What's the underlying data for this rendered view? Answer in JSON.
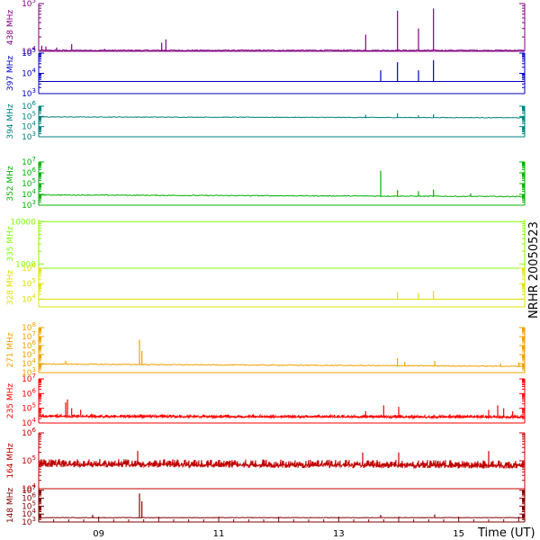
{
  "station_label": "NRHR 20050523",
  "x_axis": {
    "title": "Time (UT)",
    "ticks": [
      "09",
      "11",
      "13",
      "15"
    ]
  },
  "chart_data": {
    "type": "line",
    "title": "",
    "xlabel": "Time (UT)",
    "x_range_hours": [
      8.0,
      16.1
    ],
    "x_tick_hours": [
      9,
      11,
      13,
      15
    ],
    "x_tick_labels": [
      "09",
      "11",
      "13",
      "15"
    ],
    "side_label": "NRHR 20050523",
    "panels": [
      {
        "name": "438 MHz",
        "color": "#800080",
        "scale": "log",
        "tick_labels": [
          {
            "exp": 4,
            "base": "10",
            "sup": "4"
          },
          {
            "exp": 5,
            "base": "10",
            "sup": "5"
          }
        ],
        "ylim_exp": [
          4,
          5
        ],
        "baseline_exp": 4.02,
        "noise": 0.01,
        "spikes": [
          {
            "t": 8.05,
            "exp": 4.12
          },
          {
            "t": 8.12,
            "exp": 4.1
          },
          {
            "t": 8.3,
            "exp": 4.08
          },
          {
            "t": 8.55,
            "exp": 4.15
          },
          {
            "t": 9.1,
            "exp": 4.05
          },
          {
            "t": 10.05,
            "exp": 4.18
          },
          {
            "t": 10.12,
            "exp": 4.25
          },
          {
            "t": 13.45,
            "exp": 4.35
          },
          {
            "t": 13.98,
            "exp": 4.85
          },
          {
            "t": 14.33,
            "exp": 4.48
          },
          {
            "t": 14.58,
            "exp": 4.9
          }
        ]
      },
      {
        "name": "397 MHz",
        "color": "#0000c0",
        "scale": "log",
        "tick_labels": [
          {
            "exp": 3,
            "base": "10",
            "sup": "3"
          },
          {
            "exp": 4,
            "base": "10",
            "sup": "4"
          },
          {
            "exp": 5,
            "base": "10",
            "sup": "5"
          }
        ],
        "ylim_exp": [
          3,
          5
        ],
        "baseline_exp": 3.6,
        "noise": 0.0,
        "spikes": [
          {
            "t": 13.7,
            "exp": 4.15
          },
          {
            "t": 13.98,
            "exp": 4.55
          },
          {
            "t": 14.33,
            "exp": 4.15
          },
          {
            "t": 14.58,
            "exp": 4.65
          }
        ]
      },
      {
        "name": "394 MHz",
        "color": "#008080",
        "scale": "log",
        "tick_labels": [
          {
            "exp": 3,
            "base": "10",
            "sup": "3"
          },
          {
            "exp": 4,
            "base": "10",
            "sup": "4"
          },
          {
            "exp": 5,
            "base": "10",
            "sup": "5"
          },
          {
            "exp": 6,
            "base": "10",
            "sup": "6"
          }
        ],
        "ylim_exp": [
          3,
          6
        ],
        "baseline_exp": 4.95,
        "baseline_end_exp": 4.87,
        "noise": 0.03,
        "spikes": [
          {
            "t": 13.45,
            "exp": 5.15
          },
          {
            "t": 13.98,
            "exp": 5.3
          },
          {
            "t": 14.33,
            "exp": 5.1
          },
          {
            "t": 14.58,
            "exp": 5.2
          }
        ]
      },
      {
        "name": "352 MHz",
        "color": "#00b000",
        "scale": "log",
        "tick_labels": [
          {
            "exp": 3,
            "base": "10",
            "sup": "3"
          },
          {
            "exp": 4,
            "base": "10",
            "sup": "4"
          },
          {
            "exp": 5,
            "base": "10",
            "sup": "5"
          },
          {
            "exp": 6,
            "base": "10",
            "sup": "6"
          },
          {
            "exp": 7,
            "base": "10",
            "sup": "7"
          }
        ],
        "ylim_exp": [
          3,
          7
        ],
        "baseline_exp": 3.95,
        "baseline_end_exp": 3.8,
        "noise": 0.04,
        "spikes": [
          {
            "t": 13.7,
            "exp": 6.2
          },
          {
            "t": 13.98,
            "exp": 4.4
          },
          {
            "t": 14.33,
            "exp": 4.3
          },
          {
            "t": 14.58,
            "exp": 4.45
          },
          {
            "t": 15.2,
            "exp": 4.1
          }
        ]
      },
      {
        "name": "335 MHz",
        "color": "#80ff00",
        "scale": "log",
        "tick_labels": [
          {
            "exp": 3,
            "base": "1000",
            "sup": ""
          },
          {
            "exp": 4,
            "base": "10000",
            "sup": ""
          }
        ],
        "ylim_exp": [
          2.9,
          4.05
        ],
        "baseline_exp": 4.0,
        "noise": 0.0,
        "spikes": []
      },
      {
        "name": "328 MHz",
        "color": "#e0e000",
        "scale": "log",
        "tick_labels": [
          {
            "exp": 4,
            "base": "10",
            "sup": "4"
          },
          {
            "exp": 5,
            "base": "10",
            "sup": "5"
          },
          {
            "exp": 6,
            "base": "10",
            "sup": "6"
          }
        ],
        "ylim_exp": [
          3.5,
          6
        ],
        "baseline_exp": 4.0,
        "noise": 0.0,
        "spikes": [
          {
            "t": 13.98,
            "exp": 4.45
          },
          {
            "t": 14.33,
            "exp": 4.4
          },
          {
            "t": 14.58,
            "exp": 4.55
          }
        ]
      },
      {
        "name": "271 MHz",
        "color": "#f0a000",
        "scale": "log",
        "tick_labels": [
          {
            "exp": 3,
            "base": "10",
            "sup": "3"
          },
          {
            "exp": 4,
            "base": "10",
            "sup": "4"
          },
          {
            "exp": 5,
            "base": "10",
            "sup": "5"
          },
          {
            "exp": 6,
            "base": "10",
            "sup": "6"
          },
          {
            "exp": 7,
            "base": "10",
            "sup": "7"
          },
          {
            "exp": 8,
            "base": "10",
            "sup": "8"
          }
        ],
        "ylim_exp": [
          3,
          8
        ],
        "baseline_exp": 3.95,
        "baseline_end_exp": 3.7,
        "noise": 0.05,
        "spikes": [
          {
            "t": 8.45,
            "exp": 4.3
          },
          {
            "t": 9.68,
            "exp": 6.65
          },
          {
            "t": 9.72,
            "exp": 5.4
          },
          {
            "t": 13.98,
            "exp": 4.6
          },
          {
            "t": 14.1,
            "exp": 4.2
          },
          {
            "t": 14.6,
            "exp": 4.3
          },
          {
            "t": 15.7,
            "exp": 4.0
          },
          {
            "t": 16.0,
            "exp": 4.1
          }
        ]
      },
      {
        "name": "235 MHz",
        "color": "#ff0000",
        "scale": "log",
        "tick_labels": [
          {
            "exp": 4,
            "base": "10",
            "sup": "4"
          },
          {
            "exp": 5,
            "base": "10",
            "sup": "5"
          },
          {
            "exp": 6,
            "base": "10",
            "sup": "6"
          },
          {
            "exp": 7,
            "base": "10",
            "sup": "7"
          }
        ],
        "ylim_exp": [
          4,
          7
        ],
        "baseline_exp": 4.5,
        "baseline_end_exp": 4.45,
        "noise": 0.08,
        "spikes": [
          {
            "t": 8.45,
            "exp": 5.4
          },
          {
            "t": 8.48,
            "exp": 5.6
          },
          {
            "t": 8.55,
            "exp": 5.0
          },
          {
            "t": 8.7,
            "exp": 4.9
          },
          {
            "t": 13.45,
            "exp": 4.8
          },
          {
            "t": 13.75,
            "exp": 5.2
          },
          {
            "t": 14.0,
            "exp": 5.1
          },
          {
            "t": 15.5,
            "exp": 4.9
          },
          {
            "t": 15.65,
            "exp": 5.2
          },
          {
            "t": 15.75,
            "exp": 5.0
          },
          {
            "t": 15.9,
            "exp": 4.8
          }
        ]
      },
      {
        "name": "164 MHz",
        "color": "#c00000",
        "scale": "log",
        "tick_labels": [
          {
            "exp": 4,
            "base": "10",
            "sup": "4"
          },
          {
            "exp": 5,
            "base": "10",
            "sup": "5"
          },
          {
            "exp": 6,
            "base": "10",
            "sup": "6"
          }
        ],
        "ylim_exp": [
          4,
          6
        ],
        "baseline_exp": 4.95,
        "baseline_end_exp": 4.9,
        "noise": 0.12,
        "spikes": [
          {
            "t": 9.65,
            "exp": 5.35
          },
          {
            "t": 13.4,
            "exp": 5.3
          },
          {
            "t": 14.0,
            "exp": 5.3
          },
          {
            "t": 15.5,
            "exp": 5.35
          }
        ]
      },
      {
        "name": "148 MHz",
        "color": "#800000",
        "scale": "log",
        "tick_labels": [
          {
            "exp": 3,
            "base": "10",
            "sup": "3"
          },
          {
            "exp": 4,
            "base": "10",
            "sup": "4"
          },
          {
            "exp": 5,
            "base": "10",
            "sup": "5"
          },
          {
            "exp": 6,
            "base": "10",
            "sup": "6"
          },
          {
            "exp": 7,
            "base": "10",
            "sup": "7"
          }
        ],
        "ylim_exp": [
          3,
          7.2
        ],
        "baseline_exp": 3.55,
        "noise": 0.03,
        "spikes": [
          {
            "t": 9.68,
            "exp": 6.6
          },
          {
            "t": 9.72,
            "exp": 5.6
          },
          {
            "t": 8.9,
            "exp": 3.9
          },
          {
            "t": 13.7,
            "exp": 3.9
          },
          {
            "t": 14.6,
            "exp": 3.95
          }
        ]
      }
    ]
  }
}
